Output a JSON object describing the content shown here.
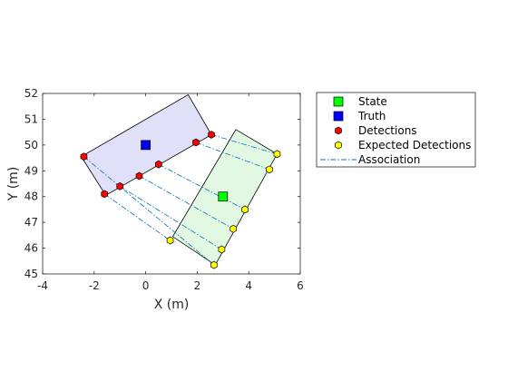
{
  "chart_data": {
    "type": "scatter",
    "xlabel": "X (m)",
    "ylabel": "Y (m)",
    "xlim": [
      -4,
      6
    ],
    "ylim": [
      45,
      52
    ],
    "xticks": [
      -4,
      -2,
      0,
      2,
      4,
      6
    ],
    "yticks": [
      45,
      46,
      47,
      48,
      49,
      50,
      51,
      52
    ],
    "grid": false,
    "legend_position": "outside-right",
    "legend": [
      {
        "name": "State",
        "marker": "square",
        "color": "#00ff00"
      },
      {
        "name": "Truth",
        "marker": "square",
        "color": "#0000ff"
      },
      {
        "name": "Detections",
        "marker": "hexagon",
        "color": "#ff0000"
      },
      {
        "name": "Expected Detections",
        "marker": "hexagon",
        "color": "#ffff00"
      },
      {
        "name": "Association",
        "line": "dash-dot",
        "color": "#0072bd"
      }
    ],
    "truth_polygon": {
      "vertices": [
        [
          -2.5,
          49.55
        ],
        [
          1.65,
          51.95
        ],
        [
          2.55,
          50.4
        ],
        [
          -1.55,
          48.05
        ]
      ],
      "fill": "#e0e0f8"
    },
    "state_polygon": {
      "vertices": [
        [
          3.5,
          50.6
        ],
        [
          5.1,
          49.65
        ],
        [
          2.7,
          45.35
        ],
        [
          1.05,
          46.45
        ]
      ],
      "fill": "#e2f8e2"
    },
    "state": {
      "x": 3.0,
      "y": 48.0
    },
    "truth": {
      "x": 0.0,
      "y": 50.0
    },
    "detections": [
      {
        "x": -2.4,
        "y": 49.55
      },
      {
        "x": -1.6,
        "y": 48.1
      },
      {
        "x": -1.0,
        "y": 48.4
      },
      {
        "x": -0.25,
        "y": 48.8
      },
      {
        "x": 0.5,
        "y": 49.25
      },
      {
        "x": 1.95,
        "y": 50.1
      },
      {
        "x": 2.55,
        "y": 50.4
      }
    ],
    "expected_detections": [
      {
        "x": 5.1,
        "y": 49.65
      },
      {
        "x": 4.8,
        "y": 49.05
      },
      {
        "x": 3.85,
        "y": 47.5
      },
      {
        "x": 3.4,
        "y": 46.75
      },
      {
        "x": 2.95,
        "y": 45.95
      },
      {
        "x": 2.65,
        "y": 45.35
      },
      {
        "x": 0.95,
        "y": 46.3
      }
    ],
    "associations": [
      [
        0,
        5
      ],
      [
        1,
        6
      ],
      [
        2,
        4
      ],
      [
        3,
        3
      ],
      [
        4,
        2
      ],
      [
        5,
        1
      ],
      [
        6,
        0
      ]
    ]
  }
}
